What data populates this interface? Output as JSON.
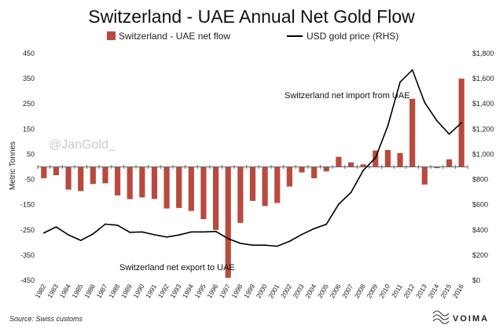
{
  "chart_data": {
    "type": "bar",
    "title": "Switzerland - UAE Annual Net Gold Flow",
    "ylabel": "Metric Tonnes",
    "categories": [
      "1982",
      "1983",
      "1984",
      "1985",
      "1986",
      "1987",
      "1988",
      "1989",
      "1990",
      "1991",
      "1992",
      "1993",
      "1994",
      "1995",
      "1996",
      "1997",
      "1998",
      "1999",
      "2000",
      "2001",
      "2002",
      "2003",
      "2004",
      "2005",
      "2006",
      "2007",
      "2008",
      "2009",
      "2010",
      "2011",
      "2012",
      "2013",
      "2014",
      "2015",
      "2016"
    ],
    "ylim": [
      -450,
      450
    ],
    "yticks": [
      450,
      350,
      250,
      150,
      50,
      -50,
      -150,
      -250,
      -350,
      -450
    ],
    "ytick_labels": [
      "450",
      "350",
      "250",
      "150",
      "50",
      "-50",
      "-150",
      "-250",
      "-350",
      "-450"
    ],
    "y2lim": [
      0,
      1800
    ],
    "y2ticks": [
      1800,
      1600,
      1400,
      1200,
      1000,
      800,
      600,
      400,
      200,
      0
    ],
    "y2tick_labels": [
      "$1,800",
      "$1,600",
      "$1,400",
      "$1,200",
      "$1,000",
      "$800",
      "$600",
      "$400",
      "$200",
      "$0"
    ],
    "series": [
      {
        "name": "Switzerland - UAE net flow",
        "type": "bar",
        "color": "#b84a3e",
        "axis": "left",
        "values": [
          -45,
          -33,
          -90,
          -96,
          -68,
          -65,
          -113,
          -128,
          -121,
          -127,
          -165,
          -163,
          -175,
          -207,
          -250,
          -440,
          -222,
          -135,
          -155,
          -143,
          -78,
          -22,
          -45,
          -18,
          40,
          18,
          10,
          65,
          67,
          55,
          270,
          -70,
          -5,
          30,
          350
        ]
      },
      {
        "name": "USD gold price (RHS)",
        "type": "line",
        "color": "#000000",
        "axis": "right",
        "values": [
          376,
          424,
          361,
          317,
          368,
          446,
          437,
          381,
          384,
          362,
          344,
          360,
          384,
          384,
          388,
          331,
          294,
          279,
          279,
          271,
          310,
          364,
          410,
          445,
          604,
          697,
          872,
          972,
          1225,
          1572,
          1669,
          1411,
          1266,
          1160,
          1251
        ]
      }
    ],
    "annotations": [
      {
        "text": "Switzerland net import from UAE"
      },
      {
        "text": "Switzerland net export to UAE"
      }
    ],
    "watermark": "@JanGold_",
    "source": "Source: Swiss customs",
    "brand": "VOIMA",
    "grid": false,
    "legend": "top-center"
  }
}
